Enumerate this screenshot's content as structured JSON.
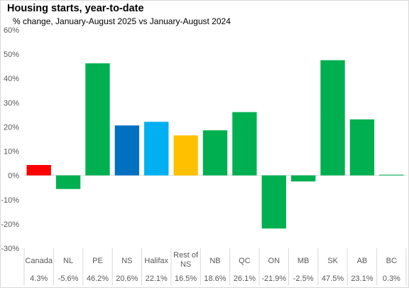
{
  "chart_data": {
    "type": "bar",
    "title": "Housing starts, year-to-date",
    "subtitle": "% change, January-August 2025 vs January-August 2024",
    "categories": [
      [
        "Canada"
      ],
      [
        "NL"
      ],
      [
        "PE"
      ],
      [
        "NS"
      ],
      [
        "Halifax"
      ],
      [
        "Rest of",
        "NS"
      ],
      [
        "NB"
      ],
      [
        "QC"
      ],
      [
        "ON"
      ],
      [
        "MB"
      ],
      [
        "SK"
      ],
      [
        "AB"
      ],
      [
        "BC"
      ]
    ],
    "values": [
      4.3,
      -5.6,
      46.2,
      20.6,
      22.1,
      16.5,
      18.6,
      26.1,
      -21.9,
      -2.5,
      47.5,
      23.1,
      0.3
    ],
    "value_labels": [
      "4.3%",
      "-5.6%",
      "46.2%",
      "20.6%",
      "22.1%",
      "16.5%",
      "18.6%",
      "26.1%",
      "-21.9%",
      "-2.5%",
      "47.5%",
      "23.1%",
      "0.3%"
    ],
    "colors": [
      "#ff0000",
      "#00b050",
      "#00b050",
      "#0070c0",
      "#00b0f0",
      "#ffc000",
      "#00b050",
      "#00b050",
      "#00b050",
      "#00b050",
      "#00b050",
      "#00b050",
      "#00b050"
    ],
    "ylim": [
      -30,
      60
    ],
    "yticks": [
      -30,
      -20,
      -10,
      0,
      10,
      20,
      30,
      40,
      50,
      60
    ],
    "ytick_labels": [
      "-30%",
      "-20%",
      "-10%",
      "0%",
      "10%",
      "20%",
      "30%",
      "40%",
      "50%",
      "60%"
    ],
    "grid": false,
    "legend": "none"
  }
}
